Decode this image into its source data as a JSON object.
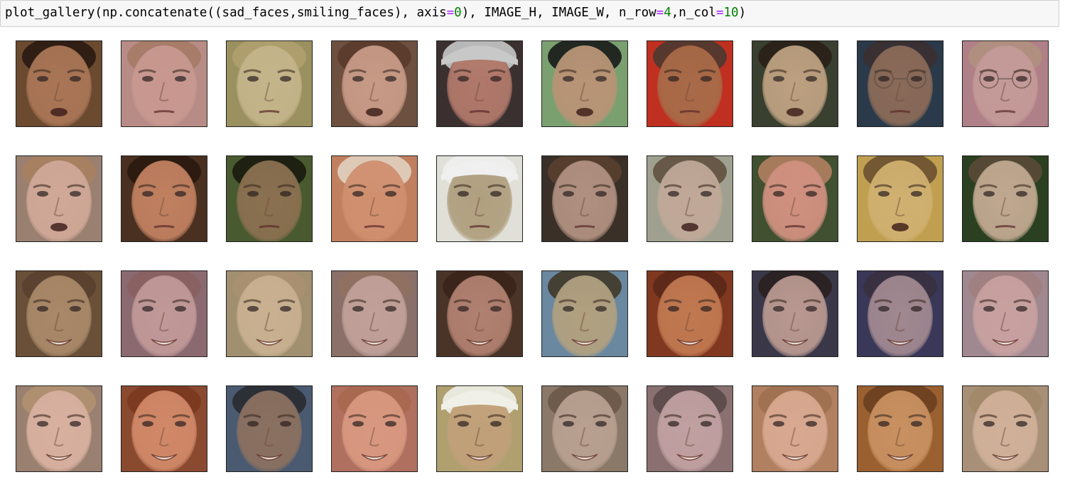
{
  "code_cell": {
    "segments": [
      {
        "text": "plot_gallery(np.concatenate((sad_faces,smiling_faces), axis",
        "cls": ""
      },
      {
        "text": "=",
        "cls": "op"
      },
      {
        "text": "0",
        "cls": "num"
      },
      {
        "text": "), IMAGE_H, IMAGE_W, n_row",
        "cls": ""
      },
      {
        "text": "=",
        "cls": "op"
      },
      {
        "text": "4",
        "cls": "num"
      },
      {
        "text": ",n_col",
        "cls": ""
      },
      {
        "text": "=",
        "cls": "op"
      },
      {
        "text": "10",
        "cls": "num"
      },
      {
        "text": ")",
        "cls": ""
      }
    ]
  },
  "gallery": {
    "rows": 4,
    "cols": 10,
    "faces": [
      {
        "bg": "#6b4a30",
        "skin": "#a97556",
        "hair": "#2a1a12",
        "mouth": "open",
        "glasses": false,
        "cap": false
      },
      {
        "bg": "#b88c86",
        "skin": "#c89890",
        "hair": "#a57a66",
        "mouth": "flat",
        "glasses": false,
        "cap": false
      },
      {
        "bg": "#9a9060",
        "skin": "#c4b48a",
        "hair": "#b0a070",
        "mouth": "flat",
        "glasses": false,
        "cap": false
      },
      {
        "bg": "#6e5040",
        "skin": "#c79a86",
        "hair": "#5a3a2a",
        "mouth": "open",
        "glasses": false,
        "cap": false
      },
      {
        "bg": "#3a3030",
        "skin": "#b0786a",
        "hair": "#c8c8c8",
        "mouth": "flat",
        "glasses": false,
        "cap": true
      },
      {
        "bg": "#7aa070",
        "skin": "#b89476",
        "hair": "#1a1a1a",
        "mouth": "open",
        "glasses": false,
        "cap": false
      },
      {
        "bg": "#c03020",
        "skin": "#a86a48",
        "hair": "#4a3a30",
        "mouth": "flat",
        "glasses": false,
        "cap": false
      },
      {
        "bg": "#3a4030",
        "skin": "#bca080",
        "hair": "#2a2018",
        "mouth": "open",
        "glasses": false,
        "cap": false
      },
      {
        "bg": "#2a3a4a",
        "skin": "#8a6a58",
        "hair": "#3a3030",
        "mouth": "flat",
        "glasses": true,
        "cap": false
      },
      {
        "bg": "#b08088",
        "skin": "#c49a98",
        "hair": "#b09080",
        "mouth": "flat",
        "glasses": true,
        "cap": false
      },
      {
        "bg": "#9a8070",
        "skin": "#d0a898",
        "hair": "#a88060",
        "mouth": "open",
        "glasses": false,
        "cap": false
      },
      {
        "bg": "#4a3020",
        "skin": "#c08060",
        "hair": "#2a1810",
        "mouth": "flat",
        "glasses": false,
        "cap": false
      },
      {
        "bg": "#4a5a30",
        "skin": "#8a7050",
        "hair": "#1a1a10",
        "mouth": "flat",
        "glasses": false,
        "cap": false
      },
      {
        "bg": "#c08060",
        "skin": "#d09070",
        "hair": "#e0d0c0",
        "mouth": "flat",
        "glasses": false,
        "cap": false
      },
      {
        "bg": "#e0e0d8",
        "skin": "#b0a080",
        "hair": "#f0f0f0",
        "mouth": "flat",
        "glasses": false,
        "cap": true
      },
      {
        "bg": "#3a3028",
        "skin": "#b09080",
        "hair": "#5a4030",
        "mouth": "flat",
        "glasses": false,
        "cap": false
      },
      {
        "bg": "#a0a090",
        "skin": "#c0a898",
        "hair": "#605040",
        "mouth": "open",
        "glasses": false,
        "cap": false
      },
      {
        "bg": "#405030",
        "skin": "#d09080",
        "hair": "#b08060",
        "mouth": "flat",
        "glasses": false,
        "cap": false
      },
      {
        "bg": "#c0a050",
        "skin": "#d0b070",
        "hair": "#6a5030",
        "mouth": "open",
        "glasses": false,
        "cap": false
      },
      {
        "bg": "#2a4020",
        "skin": "#c0a890",
        "hair": "#5a4a38",
        "mouth": "flat",
        "glasses": false,
        "cap": false
      },
      {
        "bg": "#6a5038",
        "skin": "#a88868",
        "hair": "#5a4030",
        "mouth": "smile",
        "glasses": false,
        "cap": false
      },
      {
        "bg": "#8a6a70",
        "skin": "#c09898",
        "hair": "#8a6060",
        "mouth": "smile",
        "glasses": false,
        "cap": false
      },
      {
        "bg": "#a09070",
        "skin": "#c8b090",
        "hair": "#a89070",
        "mouth": "smile",
        "glasses": false,
        "cap": false
      },
      {
        "bg": "#8a7068",
        "skin": "#c0a098",
        "hair": "#907060",
        "mouth": "smile",
        "glasses": false,
        "cap": false
      },
      {
        "bg": "#4a3428",
        "skin": "#b08070",
        "hair": "#3a2418",
        "mouth": "smile",
        "glasses": false,
        "cap": false
      },
      {
        "bg": "#6a88a0",
        "skin": "#b0a080",
        "hair": "#403828",
        "mouth": "smile",
        "glasses": false,
        "cap": false
      },
      {
        "bg": "#803820",
        "skin": "#c07850",
        "hair": "#5a2818",
        "mouth": "smile",
        "glasses": false,
        "cap": false
      },
      {
        "bg": "#3a3848",
        "skin": "#b89890",
        "hair": "#2a2020",
        "mouth": "smile",
        "glasses": false,
        "cap": false
      },
      {
        "bg": "#3a3858",
        "skin": "#a08890",
        "hair": "#3a3040",
        "mouth": "smile",
        "glasses": false,
        "cap": false
      },
      {
        "bg": "#a08890",
        "skin": "#c8a0a0",
        "hair": "#a08080",
        "mouth": "smile",
        "glasses": false,
        "cap": false
      },
      {
        "bg": "#9a8070",
        "skin": "#d8b0a0",
        "hair": "#b09070",
        "mouth": "smile",
        "glasses": false,
        "cap": false
      },
      {
        "bg": "#8a4a30",
        "skin": "#d08868",
        "hair": "#7a3a20",
        "mouth": "smile",
        "glasses": false,
        "cap": false
      },
      {
        "bg": "#4a5a70",
        "skin": "#8a7060",
        "hair": "#2a2a30",
        "mouth": "smile",
        "glasses": false,
        "cap": false
      },
      {
        "bg": "#b07060",
        "skin": "#d89880",
        "hair": "#a86850",
        "mouth": "smile",
        "glasses": false,
        "cap": false
      },
      {
        "bg": "#b0a070",
        "skin": "#c0a078",
        "hair": "#f0f0e8",
        "mouth": "smile",
        "glasses": false,
        "cap": true
      },
      {
        "bg": "#8a7868",
        "skin": "#b8a090",
        "hair": "#6a5848",
        "mouth": "smile",
        "glasses": false,
        "cap": false
      },
      {
        "bg": "#8a7070",
        "skin": "#c0a0a0",
        "hair": "#5a4848",
        "mouth": "smile",
        "glasses": false,
        "cap": false
      },
      {
        "bg": "#b08060",
        "skin": "#d8a890",
        "hair": "#a07050",
        "mouth": "smile",
        "glasses": false,
        "cap": false
      },
      {
        "bg": "#9a6030",
        "skin": "#c89060",
        "hair": "#6a4020",
        "mouth": "smile",
        "glasses": false,
        "cap": false
      },
      {
        "bg": "#a89078",
        "skin": "#d0b098",
        "hair": "#a08868",
        "mouth": "smile",
        "glasses": false,
        "cap": false
      }
    ]
  }
}
